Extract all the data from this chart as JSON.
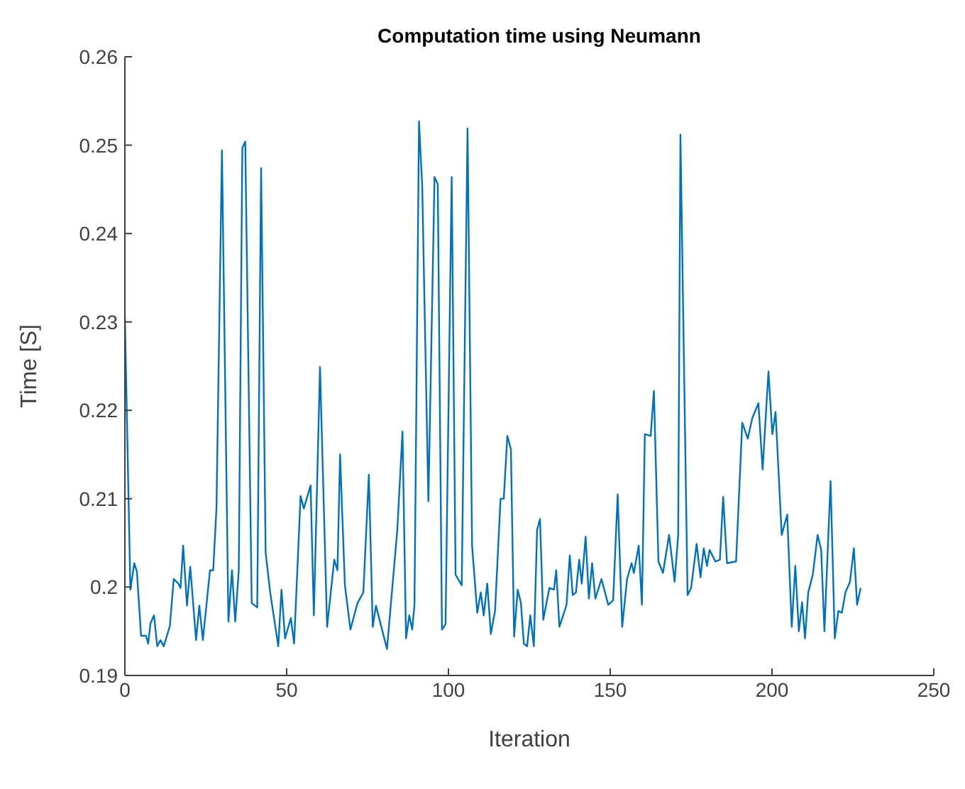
{
  "chart_data": {
    "type": "line",
    "title": "Computation time using Neumann",
    "xlabel": "Iteration",
    "ylabel": "Time [S]",
    "xlim": [
      0,
      250
    ],
    "ylim": [
      0.19,
      0.26
    ],
    "xticks": [
      0,
      50,
      100,
      150,
      200,
      250
    ],
    "yticks": [
      0.19,
      0.2,
      0.21,
      0.22,
      0.23,
      0.24,
      0.25,
      0.26
    ],
    "marker": "none",
    "line_style": "solid",
    "series": [
      {
        "color": "#0072bd",
        "x": [
          0,
          1.7,
          2.9,
          3.7,
          5,
          6.5,
          7.2,
          7.9,
          9,
          10,
          11,
          12,
          13.9,
          15.1,
          16.5,
          17.2,
          18,
          19.2,
          20.2,
          22,
          23,
          24.1,
          26.3,
          27.3,
          28.3,
          30,
          32,
          33.1,
          34.1,
          35.2,
          36.3,
          37.2,
          39.2,
          40.9,
          42.1,
          43.5,
          44.9,
          47.4,
          48.4,
          49.5,
          51.3,
          52.3,
          54.3,
          55.3,
          57.4,
          58.4,
          60.3,
          62.5,
          64.7,
          65.7,
          66.5,
          68,
          69.7,
          71.9,
          73.7,
          75.4,
          76.6,
          77.6,
          81,
          84.2,
          85.8,
          86.9,
          87.9,
          88.8,
          89.5,
          90.9,
          91.9,
          93.8,
          95.7,
          96.7,
          98,
          99.1,
          101,
          102.2,
          104.1,
          105.9,
          107.3,
          108.9,
          110,
          110.9,
          112,
          113.1,
          114.4,
          116.1,
          117.1,
          118.2,
          119.3,
          120.3,
          121.4,
          122.4,
          123.3,
          124.3,
          125.3,
          126.4,
          127.4,
          128.3,
          129.3,
          131.2,
          132.6,
          133.3,
          134.3,
          136.5,
          137.5,
          138.4,
          139.4,
          140.4,
          141.2,
          142.4,
          143.4,
          144.4,
          145.4,
          147.3,
          149.4,
          150.9,
          152.3,
          153.7,
          155.2,
          156.6,
          157.3,
          158.8,
          159.8,
          160.7,
          162.5,
          163.5,
          164.9,
          166.3,
          168.2,
          169.9,
          171,
          171.7,
          173.9,
          175,
          176.7,
          177.9,
          178.9,
          179.9,
          180.7,
          182.5,
          183.9,
          184.9,
          186.1,
          188.9,
          190.8,
          192.5,
          193.9,
          195.8,
          197.1,
          198.9,
          200.1,
          201.1,
          203,
          204.7,
          206.1,
          207.2,
          208.3,
          209.3,
          210.2,
          211.2,
          212.6,
          214.1,
          215.2,
          216.2,
          218.1,
          219.4,
          220.5,
          221.6,
          222.7,
          224.1,
          225.3,
          226.3,
          227.4
        ],
        "values": [
          0.2305,
          0.1997,
          0.2027,
          0.2018,
          0.1945,
          0.1945,
          0.1936,
          0.1959,
          0.1968,
          0.1933,
          0.194,
          0.1933,
          0.1956,
          0.2009,
          0.2004,
          0.1999,
          0.2047,
          0.1979,
          0.2023,
          0.194,
          0.1979,
          0.194,
          0.2019,
          0.2019,
          0.2089,
          0.2494,
          0.1961,
          0.2019,
          0.1961,
          0.2019,
          0.2497,
          0.2504,
          0.1982,
          0.1977,
          0.2474,
          0.2039,
          0.1994,
          0.1933,
          0.1997,
          0.1942,
          0.1965,
          0.1936,
          0.2103,
          0.2089,
          0.2115,
          0.1968,
          0.2249,
          0.1955,
          0.2031,
          0.2019,
          0.215,
          0.2002,
          0.1952,
          0.1982,
          0.1994,
          0.2127,
          0.1955,
          0.1979,
          0.193,
          0.2065,
          0.2176,
          0.1942,
          0.1968,
          0.1952,
          0.198,
          0.2527,
          0.2453,
          0.2097,
          0.2464,
          0.2456,
          0.1952,
          0.1958,
          0.2464,
          0.2014,
          0.2002,
          0.2519,
          0.2047,
          0.1971,
          0.1994,
          0.1968,
          0.2004,
          0.1947,
          0.1973,
          0.21,
          0.21,
          0.2171,
          0.2156,
          0.1944,
          0.1997,
          0.1982,
          0.1936,
          0.1933,
          0.1968,
          0.1933,
          0.2065,
          0.2077,
          0.1963,
          0.1999,
          0.1997,
          0.2019,
          0.1955,
          0.198,
          0.2036,
          0.1991,
          0.1994,
          0.2031,
          0.2004,
          0.2057,
          0.1987,
          0.2027,
          0.1987,
          0.2009,
          0.198,
          0.1985,
          0.2105,
          0.1955,
          0.2009,
          0.2027,
          0.2016,
          0.2047,
          0.198,
          0.2173,
          0.2171,
          0.2222,
          0.2029,
          0.2016,
          0.2059,
          0.2006,
          0.2059,
          0.2512,
          0.1991,
          0.1999,
          0.2049,
          0.2011,
          0.2044,
          0.2024,
          0.2042,
          0.2029,
          0.2031,
          0.2102,
          0.2027,
          0.2029,
          0.2186,
          0.2168,
          0.2191,
          0.2208,
          0.2133,
          0.2244,
          0.2173,
          0.2198,
          0.2059,
          0.2082,
          0.1955,
          0.2024,
          0.195,
          0.1983,
          0.1942,
          0.1994,
          0.2014,
          0.2059,
          0.2042,
          0.195,
          0.212,
          0.1942,
          0.1973,
          0.1971,
          0.1994,
          0.2006,
          0.2044,
          0.198,
          0.1999
        ]
      }
    ]
  }
}
